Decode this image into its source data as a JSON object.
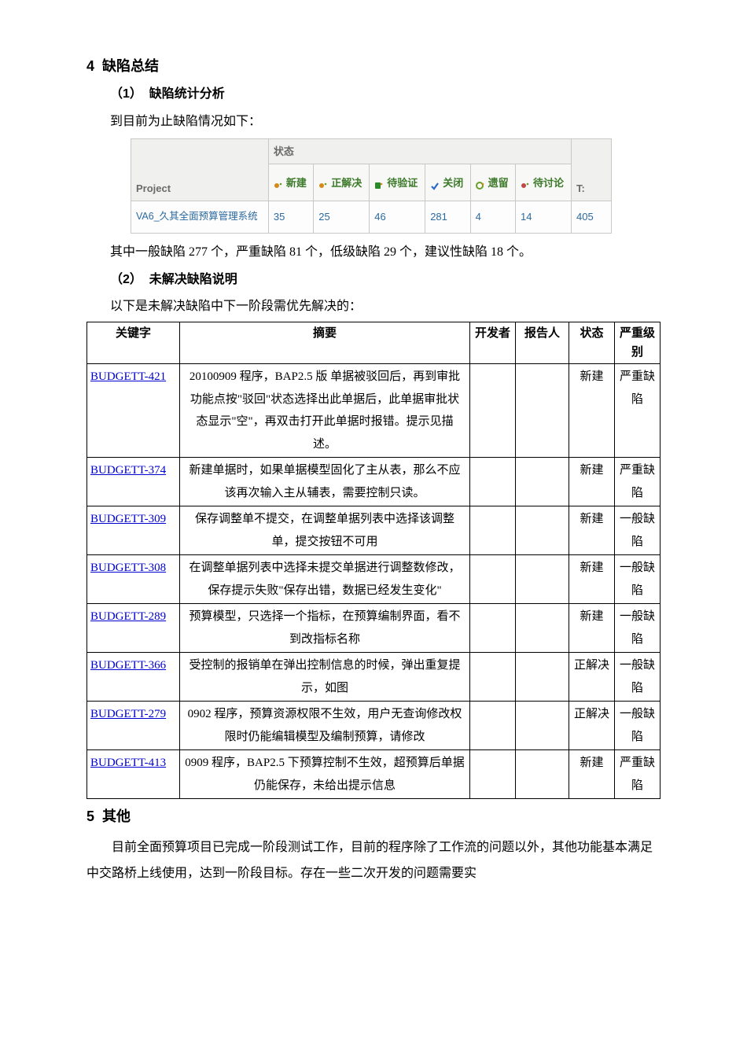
{
  "section4": {
    "number": "4",
    "title": "缺陷总结",
    "sub1": {
      "number": "（1）",
      "title": "缺陷统计分析",
      "intro": "到目前为止缺陷情况如下：",
      "status_table": {
        "group_header": "状态",
        "project_header": "Project",
        "total_header": "T:",
        "columns": [
          {
            "label": "新建",
            "icon_color": "#d38a1a"
          },
          {
            "label": "正解决",
            "icon_color": "#d38a1a"
          },
          {
            "label": "待验证",
            "icon_color": "#2a8a2a"
          },
          {
            "label": "关闭",
            "icon_color": "#2a6acc"
          },
          {
            "label": "遗留",
            "icon_color": "#6aa028"
          },
          {
            "label": "待讨论",
            "icon_color": "#c04848"
          }
        ],
        "row": {
          "project": "VA6_久其全面预算管理系统",
          "values": [
            "35",
            "25",
            "46",
            "281",
            "4",
            "14"
          ],
          "total": "405"
        }
      },
      "footer": "其中一般缺陷 277 个，严重缺陷 81 个，低级缺陷 29 个，建议性缺陷 18 个。"
    },
    "sub2": {
      "number": "（2）",
      "title": "未解决缺陷说明",
      "intro": "以下是未解决缺陷中下一阶段需优先解决的：",
      "headers": {
        "key": "关键字",
        "summary": "摘要",
        "dev": "开发者",
        "reporter": "报告人",
        "status": "状态",
        "severity": "严重级别"
      },
      "rows": [
        {
          "key": "BUDGETT-421",
          "summary": "20100909 程序，BAP2.5 版 单据被驳回后，再到审批功能点按\"驳回\"状态选择出此单据后，此单据审批状态显示\"空\"，再双击打开此单据时报错。提示见描述。",
          "dev": "",
          "reporter": "",
          "status": "新建",
          "severity": "严重缺陷"
        },
        {
          "key": "BUDGETT-374",
          "summary": "新建单据时，如果单据模型固化了主从表，那么不应该再次输入主从辅表，需要控制只读。",
          "dev": "",
          "reporter": "",
          "status": "新建",
          "severity": "严重缺陷"
        },
        {
          "key": "BUDGETT-309",
          "summary": "保存调整单不提交，在调整单据列表中选择该调整单，提交按钮不可用",
          "dev": "",
          "reporter": "",
          "status": "新建",
          "severity": "一般缺陷"
        },
        {
          "key": "BUDGETT-308",
          "summary": "在调整单据列表中选择未提交单据进行调整数修改，保存提示失败\"保存出错，数据已经发生变化\"",
          "dev": "",
          "reporter": "",
          "status": "新建",
          "severity": "一般缺陷"
        },
        {
          "key": "BUDGETT-289",
          "summary": "预算模型，只选择一个指标，在预算编制界面，看不到改指标名称",
          "dev": "",
          "reporter": "",
          "status": "新建",
          "severity": "一般缺陷"
        },
        {
          "key": "BUDGETT-366",
          "summary": "受控制的报销单在弹出控制信息的时候，弹出重复提示，如图",
          "dev": "",
          "reporter": "",
          "status": "正解决",
          "severity": "一般缺陷"
        },
        {
          "key": "BUDGETT-279",
          "summary": "0902 程序，预算资源权限不生效，用户无查询修改权限时仍能编辑模型及编制预算，请修改",
          "dev": "",
          "reporter": "",
          "status": "正解决",
          "severity": "一般缺陷"
        },
        {
          "key": "BUDGETT-413",
          "summary": "0909 程序，BAP2.5 下预算控制不生效，超预算后单据仍能保存，未给出提示信息",
          "dev": "",
          "reporter": "",
          "status": "新建",
          "severity": "严重缺陷"
        }
      ]
    }
  },
  "section5": {
    "number": "5",
    "title": "其他",
    "para": "目前全面预算项目已完成一阶段测试工作，目前的程序除了工作流的问题以外，其他功能基本满足中交路桥上线使用，达到一阶段目标。存在一些二次开发的问题需要实"
  }
}
